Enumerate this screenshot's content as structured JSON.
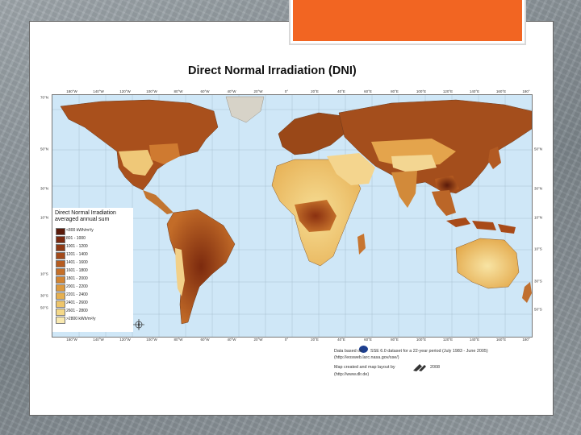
{
  "slide": {
    "accent_color": "#f26522"
  },
  "map": {
    "title": "Direct Normal Irradiation (DNI)",
    "ocean_color": "#cfe7f7",
    "lon_labels": [
      "180°W",
      "140°W",
      "120°W",
      "100°W",
      "80°W",
      "60°W",
      "40°W",
      "20°W",
      "0°",
      "20°E",
      "40°E",
      "60°E",
      "80°E",
      "100°E",
      "120°E",
      "140°E",
      "160°E",
      "180°"
    ],
    "lat_labels_left": [
      "70°N",
      "50°N",
      "30°N",
      "10°N",
      "10°S",
      "30°S",
      "50°S"
    ],
    "lat_labels_right": [
      "50°N",
      "30°N",
      "10°N",
      "10°S",
      "30°S",
      "50°S"
    ],
    "compass_icon": "compass-rose-icon"
  },
  "legend": {
    "title_line1": "Direct Normal Irradiation",
    "title_line2": "averaged annual sum",
    "classes": [
      {
        "label": "<800 kWh/m²/y",
        "color": "#5a1a0a"
      },
      {
        "label": "801 - 1000",
        "color": "#7a2a10"
      },
      {
        "label": "1001 - 1200",
        "color": "#8f3a14"
      },
      {
        "label": "1201 - 1400",
        "color": "#a34a1a"
      },
      {
        "label": "1401 - 1600",
        "color": "#b65c20"
      },
      {
        "label": "1601 - 1800",
        "color": "#c56f28"
      },
      {
        "label": "1801 - 2000",
        "color": "#d28432"
      },
      {
        "label": "2001 - 2200",
        "color": "#dd9a3e"
      },
      {
        "label": "2201 - 2400",
        "color": "#e6b050"
      },
      {
        "label": "2401 - 2600",
        "color": "#eec56a"
      },
      {
        "label": "2601 - 2800",
        "color": "#f4d888"
      },
      {
        "label": ">2800 kWh/m²/y",
        "color": "#f9e9b0"
      }
    ]
  },
  "credits": {
    "line1_pre": "Data based on",
    "line1_post": "SSE 6.0 dataset for a 22-year period (July 1983 - June 2005)",
    "line2": "(http://eosweb.larc.nasa.gov/sse/)",
    "line3_pre": "Map created and map layout by",
    "line3_post": "2008",
    "line4": "(http://www.dlr.de)"
  }
}
